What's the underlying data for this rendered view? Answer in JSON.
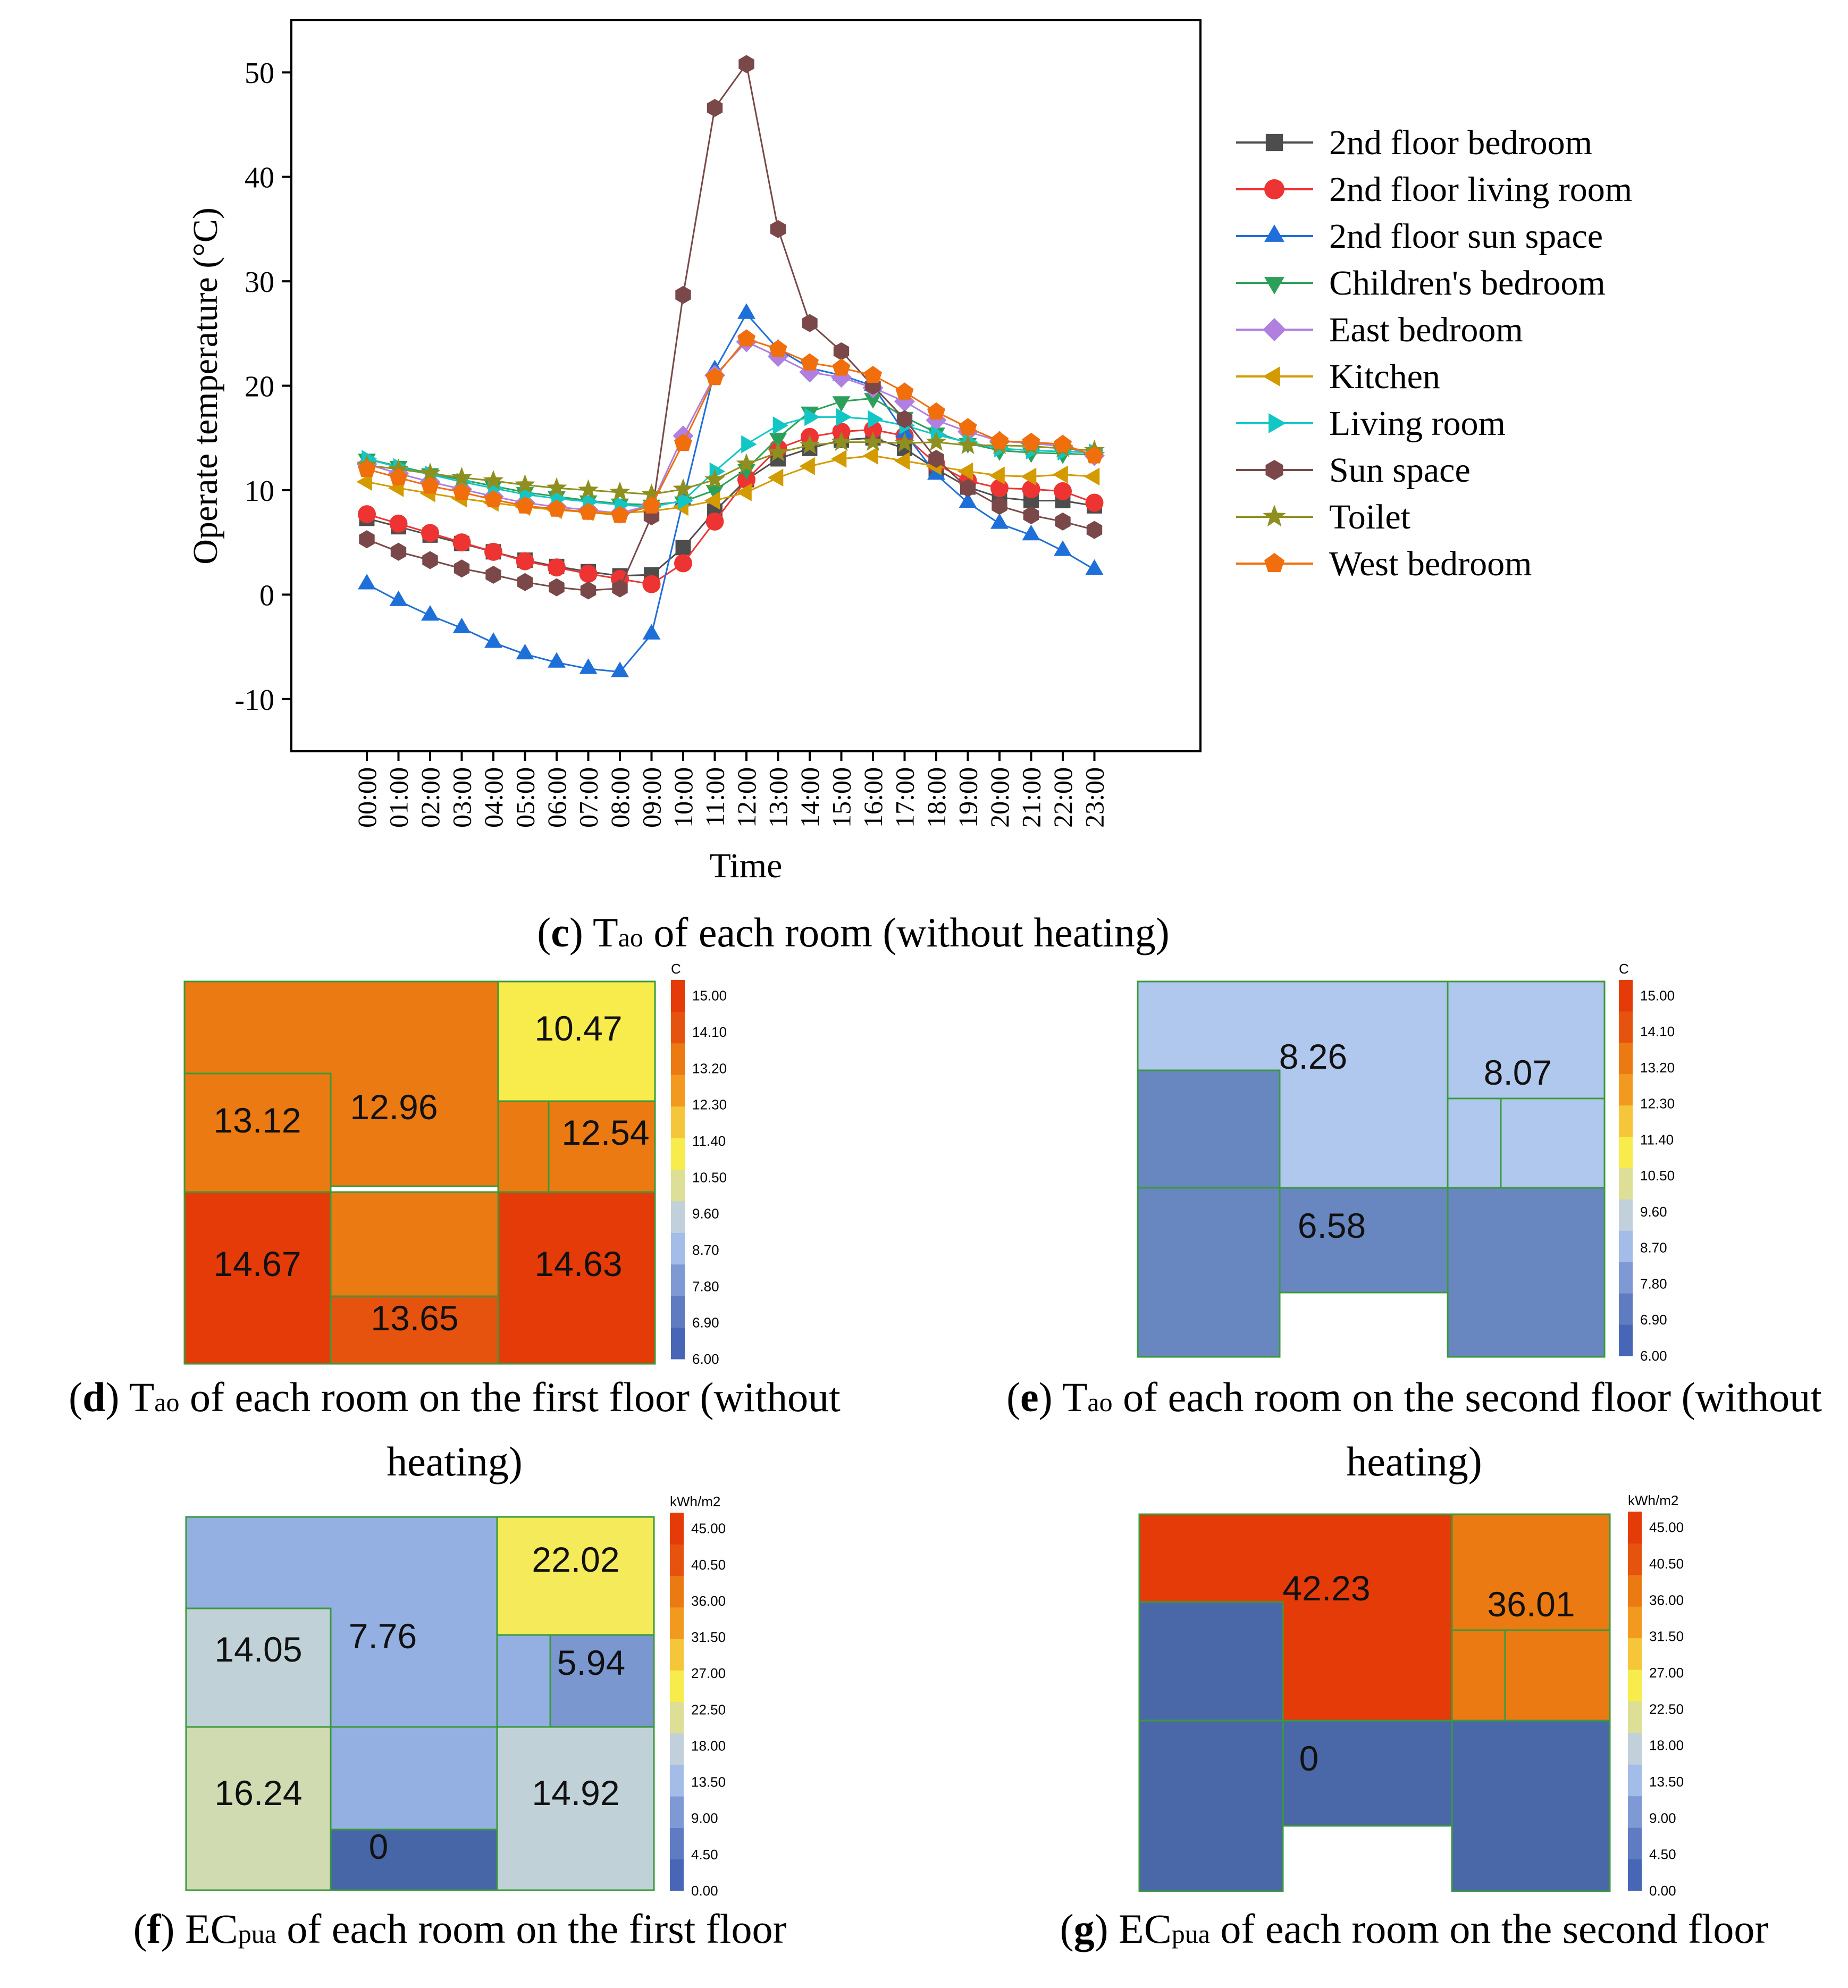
{
  "chart_data": [
    {
      "type": "line",
      "panel": "c",
      "xlabel": "Time",
      "ylabel": "Operate temperature (°C)",
      "ylim": [
        -15,
        55
      ],
      "yticks": [
        -10,
        0,
        10,
        20,
        30,
        40,
        50
      ],
      "categories": [
        "00:00",
        "01:00",
        "02:00",
        "03:00",
        "04:00",
        "05:00",
        "06:00",
        "07:00",
        "08:00",
        "09:00",
        "10:00",
        "11:00",
        "12:00",
        "13:00",
        "14:00",
        "15:00",
        "16:00",
        "17:00",
        "18:00",
        "19:00",
        "20:00",
        "21:00",
        "22:00",
        "23:00"
      ],
      "legend_position": "right",
      "series": [
        {
          "name": "2nd floor bedroom",
          "color": "#4d4d4d",
          "marker": "square",
          "values": [
            7.3,
            6.5,
            5.7,
            4.9,
            4.1,
            3.3,
            2.7,
            2.2,
            1.8,
            1.9,
            4.5,
            8.0,
            11.0,
            13.0,
            14.0,
            14.8,
            15.0,
            14.0,
            12.0,
            10.3,
            9.3,
            9.0,
            9.0,
            8.5
          ]
        },
        {
          "name": "2nd floor living room",
          "color": "#ee3333",
          "marker": "circle",
          "values": [
            7.7,
            6.8,
            5.9,
            5.0,
            4.1,
            3.2,
            2.6,
            2.0,
            1.5,
            1.0,
            3.0,
            7.0,
            11.0,
            14.0,
            15.1,
            15.6,
            15.8,
            15.2,
            12.5,
            10.9,
            10.2,
            10.1,
            9.9,
            8.8
          ]
        },
        {
          "name": "2nd floor sun space",
          "color": "#1f6fd8",
          "marker": "triangle-up",
          "values": [
            1.0,
            -0.6,
            -2.0,
            -3.2,
            -4.6,
            -5.7,
            -6.5,
            -7.1,
            -7.4,
            -3.8,
            9.0,
            21.5,
            26.9,
            23.5,
            21.7,
            21.0,
            20.0,
            15.5,
            11.5,
            8.8,
            6.8,
            5.7,
            4.2,
            2.4
          ]
        },
        {
          "name": "Children's bedroom",
          "color": "#2ca05a",
          "marker": "triangle-down",
          "values": [
            13.0,
            12.3,
            11.6,
            11.0,
            10.4,
            9.8,
            9.4,
            9.0,
            8.7,
            8.6,
            8.9,
            10.0,
            12.0,
            15.0,
            17.5,
            18.5,
            18.8,
            17.0,
            15.5,
            14.5,
            13.8,
            13.6,
            13.5,
            13.4
          ]
        },
        {
          "name": "East bedroom",
          "color": "#b07fe0",
          "marker": "diamond",
          "values": [
            12.5,
            11.6,
            10.8,
            10.1,
            9.4,
            8.8,
            8.4,
            8.1,
            7.8,
            8.6,
            15.2,
            21.0,
            24.2,
            22.8,
            21.3,
            20.8,
            19.8,
            18.5,
            16.7,
            15.6,
            14.7,
            14.5,
            14.2,
            13.3
          ]
        },
        {
          "name": "Kitchen",
          "color": "#d49b00",
          "marker": "triangle-left",
          "values": [
            10.8,
            10.2,
            9.7,
            9.2,
            8.8,
            8.4,
            8.1,
            7.9,
            7.8,
            8.0,
            8.4,
            9.0,
            9.8,
            11.2,
            12.3,
            13.0,
            13.3,
            12.8,
            12.3,
            11.8,
            11.4,
            11.3,
            11.5,
            11.3
          ]
        },
        {
          "name": "Living room",
          "color": "#13c6c6",
          "marker": "triangle-right",
          "values": [
            13.0,
            12.2,
            11.5,
            10.8,
            10.2,
            9.6,
            9.2,
            8.9,
            8.6,
            8.4,
            9.0,
            11.8,
            14.4,
            16.2,
            17.0,
            17.0,
            16.8,
            16.2,
            15.3,
            14.6,
            14.0,
            13.8,
            13.7,
            13.6
          ]
        },
        {
          "name": "Sun space",
          "color": "#7a4848",
          "marker": "hexagon",
          "values": [
            5.3,
            4.1,
            3.3,
            2.5,
            1.9,
            1.2,
            0.7,
            0.4,
            0.6,
            7.5,
            28.7,
            46.6,
            50.8,
            35.0,
            26.0,
            23.3,
            20.0,
            16.8,
            13.0,
            10.2,
            8.5,
            7.6,
            7.0,
            6.2
          ]
        },
        {
          "name": "Toilet",
          "color": "#8f8f1f",
          "marker": "star",
          "values": [
            12.4,
            12.0,
            11.6,
            11.2,
            10.9,
            10.5,
            10.2,
            10.0,
            9.8,
            9.6,
            10.1,
            11.0,
            12.5,
            13.6,
            14.3,
            14.6,
            14.6,
            14.5,
            14.6,
            14.3,
            14.3,
            14.2,
            14.0,
            13.8
          ]
        },
        {
          "name": "West bedroom",
          "color": "#f06e0c",
          "marker": "pentagon",
          "values": [
            12.0,
            11.2,
            10.4,
            9.8,
            9.1,
            8.5,
            8.2,
            7.9,
            7.6,
            8.5,
            14.5,
            20.8,
            24.5,
            23.5,
            22.2,
            21.7,
            21.0,
            19.4,
            17.5,
            16.0,
            14.7,
            14.6,
            14.4,
            13.3
          ]
        }
      ]
    },
    {
      "type": "heatmap",
      "panel": "d",
      "unit_label": "C",
      "colorbar_ticks": [
        "15.00",
        "14.10",
        "13.20",
        "12.30",
        "11.40",
        "10.50",
        "9.60",
        "8.70",
        "7.80",
        "6.90",
        "6.00"
      ],
      "room_labels": [
        "10.47",
        "13.12",
        "12.96",
        "12.54",
        "14.67",
        "14.63",
        "13.65"
      ]
    },
    {
      "type": "heatmap",
      "panel": "e",
      "unit_label": "C",
      "colorbar_ticks": [
        "15.00",
        "14.10",
        "13.20",
        "12.30",
        "11.40",
        "10.50",
        "9.60",
        "8.70",
        "7.80",
        "6.90",
        "6.00"
      ],
      "room_labels": [
        "8.26",
        "8.07",
        "6.58"
      ]
    },
    {
      "type": "heatmap",
      "panel": "f",
      "unit_label": "kWh/m2",
      "colorbar_ticks": [
        "45.00",
        "40.50",
        "36.00",
        "31.50",
        "27.00",
        "22.50",
        "18.00",
        "13.50",
        "9.00",
        "4.50",
        "0.00"
      ],
      "room_labels": [
        "22.02",
        "14.05",
        "7.76",
        "5.94",
        "16.24",
        "14.92",
        "0"
      ]
    },
    {
      "type": "heatmap",
      "panel": "g",
      "unit_label": "kWh/m2",
      "colorbar_ticks": [
        "45.00",
        "40.50",
        "36.00",
        "31.50",
        "27.00",
        "22.50",
        "18.00",
        "13.50",
        "9.00",
        "4.50",
        "0.00"
      ],
      "room_labels": [
        "42.23",
        "36.01",
        "0"
      ]
    }
  ],
  "captions": {
    "c": {
      "letter": "c",
      "pre": " T",
      "sub": "ao",
      "post": " of each room (without heating)"
    },
    "d": {
      "letter": "d",
      "pre": " T",
      "sub": "ao",
      "post": " of each room on the first floor (without heating)"
    },
    "e": {
      "letter": "e",
      "pre": " T",
      "sub": "ao",
      "post": " of each room on the second floor (without heating)"
    },
    "f": {
      "letter": "f",
      "pre": " EC",
      "sub": "pua",
      "post": " of each room on the first floor"
    },
    "g": {
      "letter": "g",
      "pre": " EC",
      "sub": "pua",
      "post": " of each room on the second floor"
    }
  },
  "colors": {
    "temp_ramp": [
      "#4766b5",
      "#5f7cc2",
      "#7e99d4",
      "#a3bce8",
      "#c2d0dc",
      "#dcdf95",
      "#f8ec4c",
      "#f6c63a",
      "#f29a1f",
      "#eb7a12",
      "#e6530e",
      "#e53b08"
    ],
    "ec_ramp": [
      "#4766b5",
      "#5f7cc2",
      "#7e99d4",
      "#a3bce8",
      "#c2d0dc",
      "#dcdf95",
      "#f8ec4c",
      "#f6c63a",
      "#f29a1f",
      "#eb7a12",
      "#e6530e",
      "#e53b08"
    ]
  }
}
